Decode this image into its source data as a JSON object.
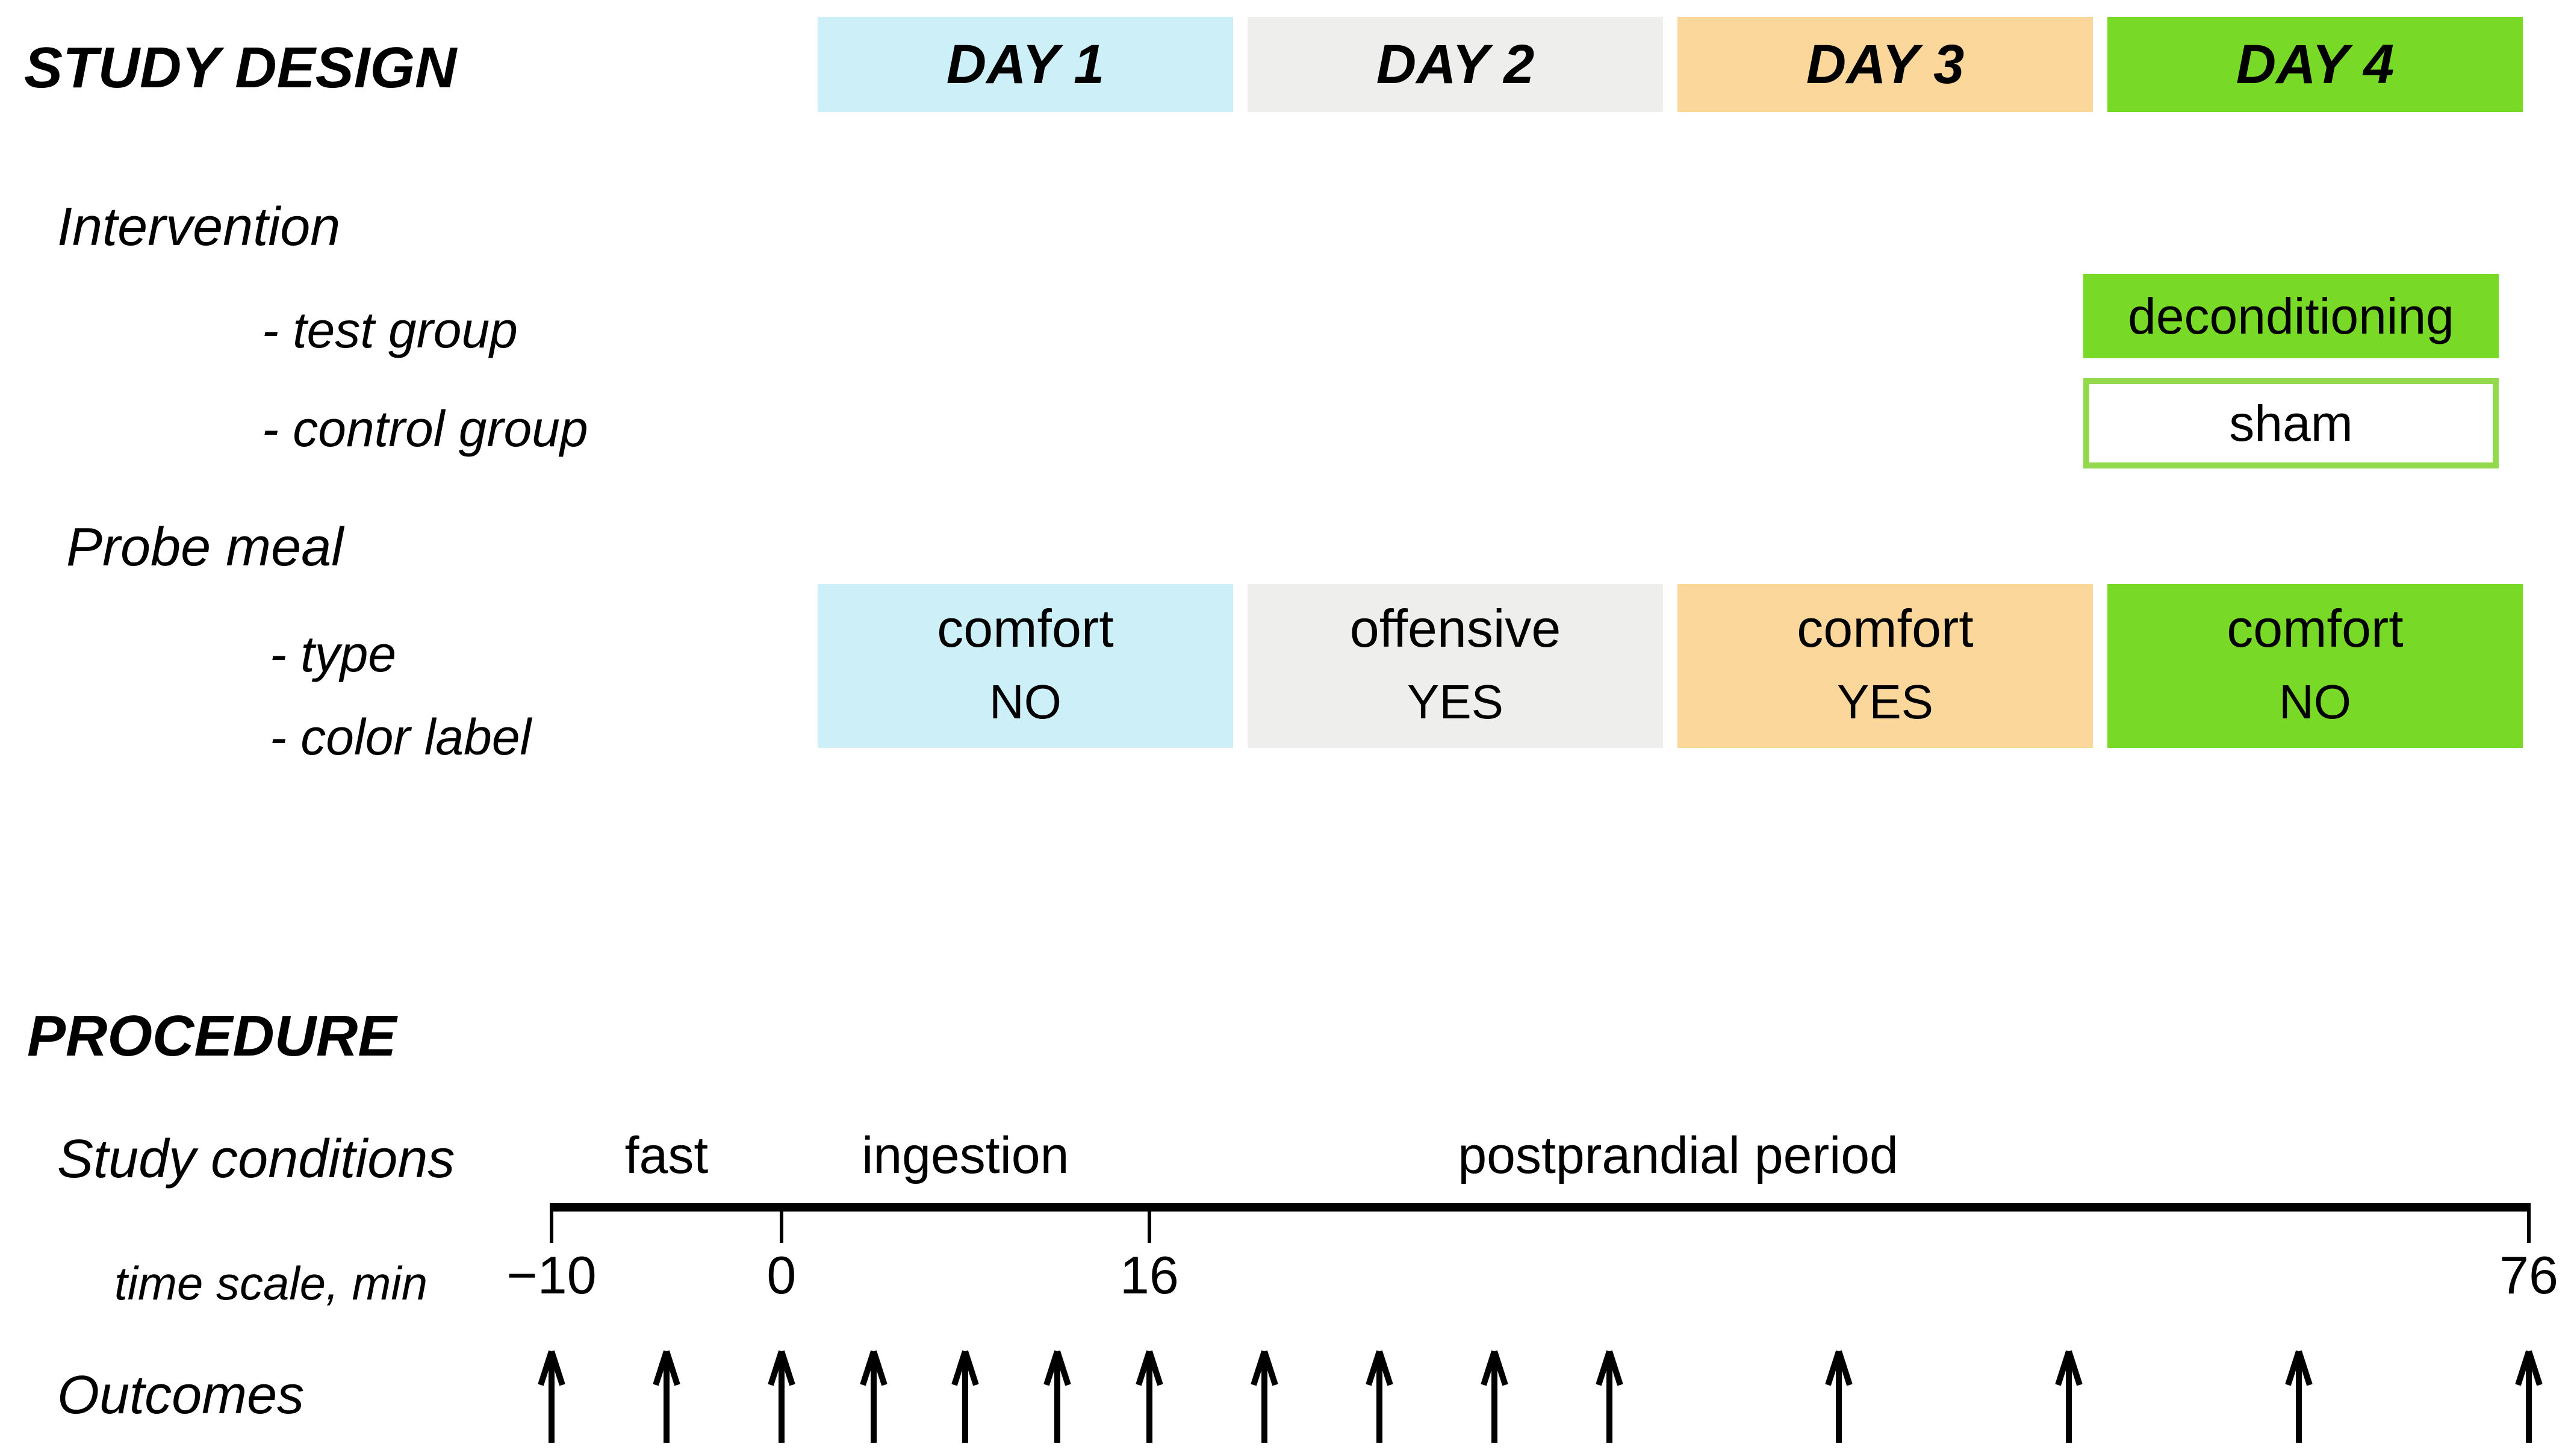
{
  "study_design": {
    "title": "STUDY DESIGN",
    "days": [
      {
        "label": "DAY 1",
        "color": "#cdeff7"
      },
      {
        "label": "DAY 2",
        "color": "#eeeeec"
      },
      {
        "label": "DAY 3",
        "color": "#fbd79c"
      },
      {
        "label": "DAY 4",
        "color": "#79d927"
      }
    ],
    "intervention": {
      "label": "Intervention",
      "rows": [
        {
          "label": "- test group",
          "value": "deconditioning",
          "box_fill": "#79d927"
        },
        {
          "label": "- control group",
          "value": "sham",
          "box_fill": "#ffffff",
          "box_border": "#92d94e"
        }
      ]
    },
    "probe_meal": {
      "label": "Probe meal",
      "row_labels": [
        "- type",
        "- color label"
      ],
      "cells": [
        {
          "type": "comfort",
          "color_label": "NO"
        },
        {
          "type": "offensive",
          "color_label": "YES"
        },
        {
          "type": "comfort",
          "color_label": "YES"
        },
        {
          "type": "comfort",
          "color_label": "NO"
        }
      ]
    }
  },
  "procedure": {
    "title": "PROCEDURE",
    "study_conditions_label": "Study conditions",
    "phases": [
      {
        "label": "fast",
        "mid_time": -5
      },
      {
        "label": "ingestion",
        "mid_time": 8
      },
      {
        "label": "postprandial period",
        "mid_time": 39
      }
    ],
    "timeline": {
      "unit": "min",
      "min": -10,
      "max": 76,
      "ticks": [
        -10,
        0,
        16,
        76
      ],
      "tick_labels": [
        "−10",
        "0",
        "16",
        "76"
      ]
    },
    "time_scale_label": "time scale, min",
    "outcomes_label": "Outcomes",
    "outcome_arrow_times": [
      -10,
      -5,
      0,
      4,
      8,
      12,
      16,
      21,
      26,
      31,
      36,
      46,
      56,
      66,
      76
    ]
  }
}
